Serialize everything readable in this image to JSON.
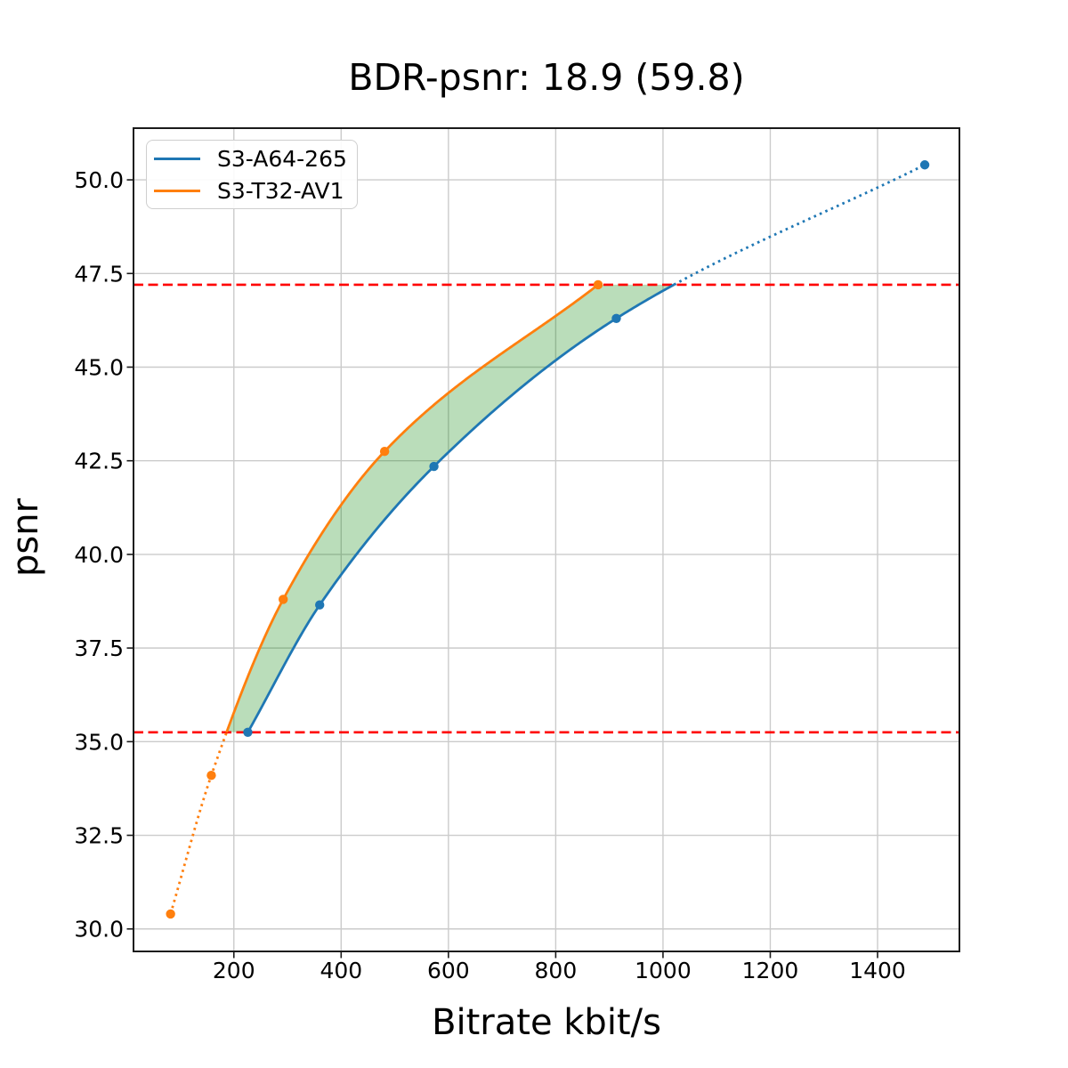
{
  "chart_data": {
    "type": "line",
    "title": "BDR-psnr: 18.9 (59.8)",
    "xlabel": "Bitrate kbit/s",
    "ylabel": "psnr",
    "xlim": [
      12.9,
      1552.6
    ],
    "ylim": [
      29.4,
      51.38
    ],
    "xticks": [
      200,
      400,
      600,
      800,
      1000,
      1200,
      1400
    ],
    "xtick_labels": [
      "200",
      "400",
      "600",
      "800",
      "1000",
      "1200",
      "1400"
    ],
    "yticks": [
      30.0,
      32.5,
      35.0,
      37.5,
      40.0,
      42.5,
      45.0,
      47.5,
      50.0
    ],
    "ytick_labels": [
      "30.0",
      "32.5",
      "35.0",
      "37.5",
      "40.0",
      "42.5",
      "45.0",
      "47.5",
      "50.0"
    ],
    "grid": true,
    "grid_color": "#cbcbcb",
    "legend_position": "upper-left",
    "series": [
      {
        "name": "S3-A64-265",
        "color": "#1f77b4",
        "marker": "circle",
        "points": [
          [
            226,
            35.25
          ],
          [
            360,
            38.65
          ],
          [
            573,
            42.35
          ],
          [
            913,
            46.3
          ],
          [
            1488,
            50.4
          ]
        ]
      },
      {
        "name": "S3-T32-AV1",
        "color": "#ff7f0e",
        "marker": "circle",
        "points": [
          [
            82,
            30.4
          ],
          [
            158,
            34.1
          ],
          [
            292,
            38.8
          ],
          [
            481,
            42.75
          ],
          [
            879,
            47.2
          ]
        ]
      }
    ],
    "overlap_band": {
      "psnr_low": 35.25,
      "psnr_high": 47.2,
      "boundary_line_color": "#ff0000",
      "boundary_line_style": "dashed",
      "fill_color": "#008000",
      "fill_opacity": 0.27,
      "note": "curves drawn solid inside overlap psnr range, dotted outside"
    }
  }
}
